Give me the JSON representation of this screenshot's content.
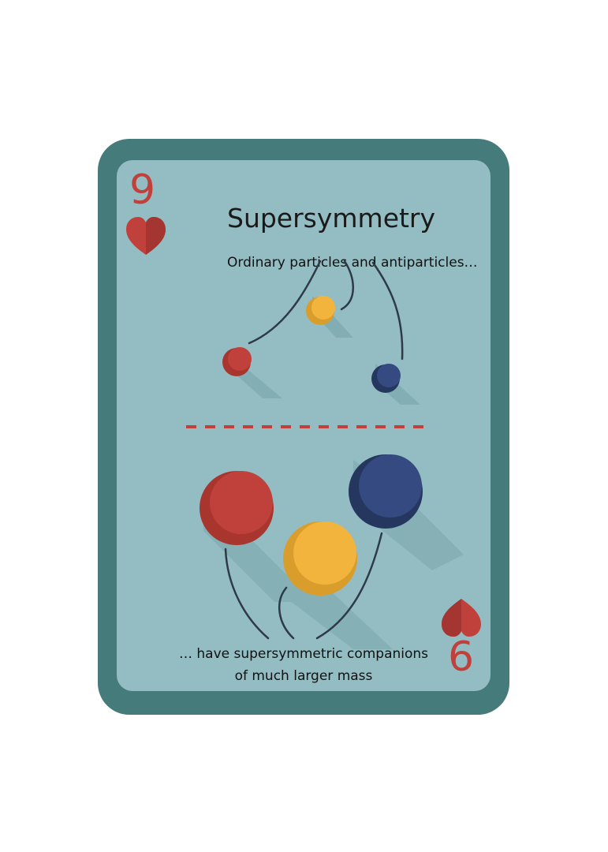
{
  "card": {
    "rank": "9",
    "suit_icon": "heart-icon",
    "title": "Supersymmetry",
    "caption_top": "Ordinary particles and antiparticles…",
    "caption_bottom_line1": "… have supersymmetric companions",
    "caption_bottom_line2": "of much larger mass"
  },
  "colors": {
    "card_border": "#457b7b",
    "card_face": "#93bdc2",
    "red": "#c0413c",
    "yellow": "#f2b43d",
    "blue": "#344a80",
    "divider": "#c0413c"
  }
}
